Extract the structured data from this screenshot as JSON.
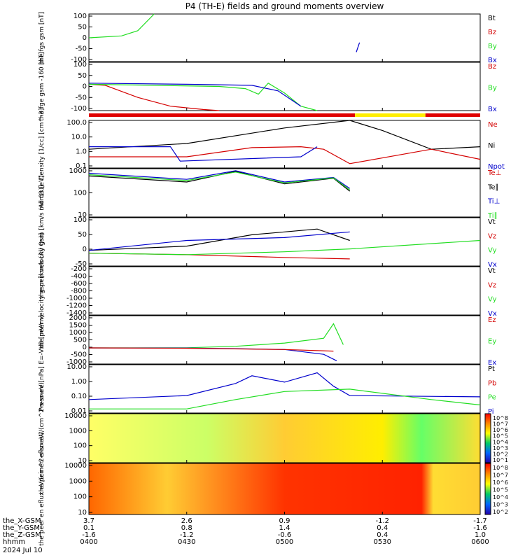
{
  "title": "P4 (TH-E) fields and ground moments overview",
  "colors": {
    "black": "#000000",
    "red": "#d40000",
    "green": "#22dd22",
    "blue": "#0000cc",
    "bar_red": "#e00000",
    "bar_yellow": "#ffee00",
    "teal": "#008888",
    "purple": "#6600aa"
  },
  "time_axis": {
    "rows": [
      {
        "label": "the_X-GSM",
        "values": [
          "3.7",
          "2.6",
          "0.9",
          "-1.2",
          "-1.7"
        ]
      },
      {
        "label": "the_Y-GSM",
        "values": [
          "0.1",
          "0.8",
          "1.4",
          "0.4",
          "-1.6"
        ]
      },
      {
        "label": "the_Z-GSM",
        "values": [
          "-1.6",
          "-1.2",
          "-0.6",
          "0.4",
          "1.0"
        ]
      },
      {
        "label": "hhmm",
        "values": [
          "0400",
          "0430",
          "0500",
          "0530",
          "0600"
        ]
      }
    ],
    "date": "2024 Jul 10"
  },
  "chart_data": [
    {
      "type": "line",
      "ylabel": "the fgs gsm [nT]",
      "yticks": [
        "100",
        "50",
        "0",
        "-50",
        "-100"
      ],
      "ylim": [
        -100,
        100
      ],
      "legend": [
        "Bt",
        "Bz",
        "By",
        "Bx"
      ],
      "series": [
        {
          "name": "By",
          "x": [
            "0400",
            "0410",
            "0415",
            "0420"
          ],
          "values": [
            0,
            8,
            30,
            100
          ]
        },
        {
          "name": "Bx",
          "x": [
            "0522",
            "0523"
          ],
          "values": [
            -60,
            -20
          ]
        }
      ]
    },
    {
      "type": "line",
      "ylabel": "the fge gsm -160 [nT]",
      "yticks": [
        "100",
        "50",
        "0",
        "-50",
        "-100"
      ],
      "ylim": [
        -120,
        100
      ],
      "legend": [
        "Bz",
        "By",
        "Bx"
      ],
      "series": [
        {
          "name": "Bz",
          "x": [
            "0400",
            "0405",
            "0415",
            "0425",
            "0435",
            "0440"
          ],
          "values": [
            0,
            -5,
            -60,
            -100,
            -115,
            -120
          ]
        },
        {
          "name": "By",
          "x": [
            "0400",
            "0420",
            "0440",
            "0448",
            "0452",
            "0455",
            "0500",
            "0505",
            "0510"
          ],
          "values": [
            0,
            -5,
            -10,
            -20,
            -45,
            5,
            -40,
            -100,
            -120
          ]
        },
        {
          "name": "Bx",
          "x": [
            "0400",
            "0430",
            "0450",
            "0458",
            "0505"
          ],
          "values": [
            5,
            0,
            -5,
            -30,
            -100
          ]
        }
      ]
    },
    {
      "type": "line",
      "ylabel": "Density [1/cc] [cm^-3]",
      "yticks": [
        "100.0",
        "10.0",
        "1.0",
        "0.1"
      ],
      "ylim": [
        0.05,
        100
      ],
      "scale": "log",
      "legend": [
        "Ne",
        "Ni",
        "Npot"
      ],
      "series": [
        {
          "name": "Ni",
          "x": [
            "0400",
            "0430",
            "0500",
            "0520",
            "0530",
            "0545",
            "0600"
          ],
          "values": [
            1.0,
            2.5,
            30,
            100,
            20,
            1.0,
            1.5
          ]
        },
        {
          "name": "Ne",
          "x": [
            "0400",
            "0430",
            "0450",
            "0505",
            "0512",
            "0520",
            "0545",
            "0600"
          ],
          "values": [
            0.3,
            0.3,
            1.3,
            1.5,
            1.0,
            0.1,
            1.0,
            0.2
          ]
        },
        {
          "name": "Npot",
          "x": [
            "0400",
            "0425",
            "0428",
            "0505",
            "0510"
          ],
          "values": [
            1.5,
            1.5,
            0.15,
            0.3,
            1.5
          ]
        }
      ]
    },
    {
      "type": "line",
      "ylabel": "mom3 [eV]",
      "yticks": [
        "1000",
        "100",
        "10"
      ],
      "ylim": [
        2,
        3000
      ],
      "scale": "log",
      "legend": [
        "Te⊥",
        "Te∥",
        "Ti⊥",
        "Ti∥"
      ],
      "series": [
        {
          "name": "Te∥",
          "x": [
            "0400",
            "0430",
            "0445",
            "0500",
            "0515",
            "0520"
          ],
          "values": [
            1000,
            400,
            2000,
            300,
            700,
            100
          ]
        },
        {
          "name": "Ti⊥",
          "x": [
            "0400",
            "0430",
            "0445",
            "0500",
            "0515",
            "0520"
          ],
          "values": [
            1500,
            600,
            2200,
            400,
            800,
            150
          ]
        },
        {
          "name": "Ti∥",
          "x": [
            "0400",
            "0430",
            "0445",
            "0500",
            "0515",
            "0520"
          ],
          "values": [
            1200,
            500,
            1800,
            350,
            750,
            120
          ]
        }
      ]
    },
    {
      "type": "line",
      "ylabel": "the peir velocity gsm [km/s (All Qs)]",
      "yticks": [
        "100",
        "50",
        "0",
        "-50"
      ],
      "ylim": [
        -50,
        120
      ],
      "legend": [
        "Vt",
        "Vz",
        "Vy",
        "Vx"
      ],
      "series": [
        {
          "name": "Vt",
          "x": [
            "0400",
            "0430",
            "0450",
            "0510",
            "0520"
          ],
          "values": [
            5,
            20,
            60,
            80,
            40
          ]
        },
        {
          "name": "Vz",
          "x": [
            "0400",
            "0430",
            "0500",
            "0520"
          ],
          "values": [
            -5,
            -10,
            -20,
            -25
          ]
        },
        {
          "name": "Vy",
          "x": [
            "0400",
            "0430",
            "0500",
            "0520",
            "0600"
          ],
          "values": [
            -5,
            -10,
            0,
            10,
            40
          ]
        },
        {
          "name": "Vx",
          "x": [
            "0400",
            "0430",
            "0500",
            "0520"
          ],
          "values": [
            5,
            40,
            50,
            70
          ]
        }
      ]
    },
    {
      "type": "line",
      "ylabel": "the peer velocity gsm [km/s (All Qs)]",
      "yticks": [
        "-200",
        "-400",
        "-600",
        "-800",
        "-1000",
        "-1200",
        "-1400"
      ],
      "ylim": [
        -1400,
        -200
      ],
      "legend": [
        "Vt",
        "Vz",
        "Vy",
        "Vx"
      ],
      "series": []
    },
    {
      "type": "line",
      "ylabel": "E=-VxB [mV/m]",
      "yticks": [
        "2000",
        "1500",
        "1000",
        "500",
        "0",
        "-500",
        "-1000"
      ],
      "ylim": [
        -1000,
        2000
      ],
      "legend": [
        "Ez",
        "Ey",
        "Ex"
      ],
      "series": [
        {
          "name": "Ey",
          "x": [
            "0400",
            "0430",
            "0445",
            "0500",
            "0512",
            "0515",
            "0518"
          ],
          "values": [
            0,
            10,
            100,
            300,
            600,
            1500,
            200
          ]
        },
        {
          "name": "Ex",
          "x": [
            "0400",
            "0430",
            "0445",
            "0500",
            "0512",
            "0516"
          ],
          "values": [
            0,
            -10,
            -50,
            -100,
            -400,
            -800
          ]
        },
        {
          "name": "Ez",
          "x": [
            "0400",
            "0430",
            "0500",
            "0515"
          ],
          "values": [
            0,
            -20,
            -100,
            -200
          ]
        }
      ]
    },
    {
      "type": "line",
      "ylabel": "Pressure [nPa]",
      "yticks": [
        "10.00",
        "1.00",
        "0.10",
        "0.01"
      ],
      "ylim": [
        0.005,
        20
      ],
      "scale": "log",
      "legend": [
        "Pt",
        "Pb",
        "Pe",
        "Pi"
      ],
      "series": [
        {
          "name": "Pi",
          "x": [
            "0400",
            "0430",
            "0445",
            "0450",
            "0500",
            "0510",
            "0515",
            "0520",
            "0600"
          ],
          "values": [
            0.05,
            0.1,
            0.8,
            3.0,
            1.0,
            5.0,
            0.5,
            0.1,
            0.08
          ]
        },
        {
          "name": "Pe",
          "x": [
            "0400",
            "0430",
            "0445",
            "0500",
            "0520",
            "0545",
            "0600"
          ],
          "values": [
            0.01,
            0.01,
            0.05,
            0.2,
            0.3,
            0.05,
            0.02
          ]
        }
      ]
    },
    {
      "type": "heatmap",
      "ylabel": "the peir en eflux eV/(cm^2-s-sr-eV)",
      "yticks": [
        "10000",
        "1000",
        "100",
        "10"
      ],
      "colorbar": {
        "label": "[eV/(cm^2-s-sr-eV)]",
        "ticks": [
          "10^8",
          "10^7",
          "10^6",
          "10^5",
          "10^4",
          "10^3",
          "10^2",
          "10^1"
        ]
      }
    },
    {
      "type": "heatmap",
      "ylabel": "the peer en eflux eV/(cm^2-s-sr-eV)",
      "yticks": [
        "10000",
        "1000",
        "100",
        "10"
      ],
      "colorbar": {
        "label": "[eV/(cm^2-s-sr-eV)]",
        "ticks": [
          "10^8",
          "10^7",
          "10^6",
          "10^5",
          "10^4",
          "10^3",
          "10^2"
        ]
      }
    }
  ]
}
